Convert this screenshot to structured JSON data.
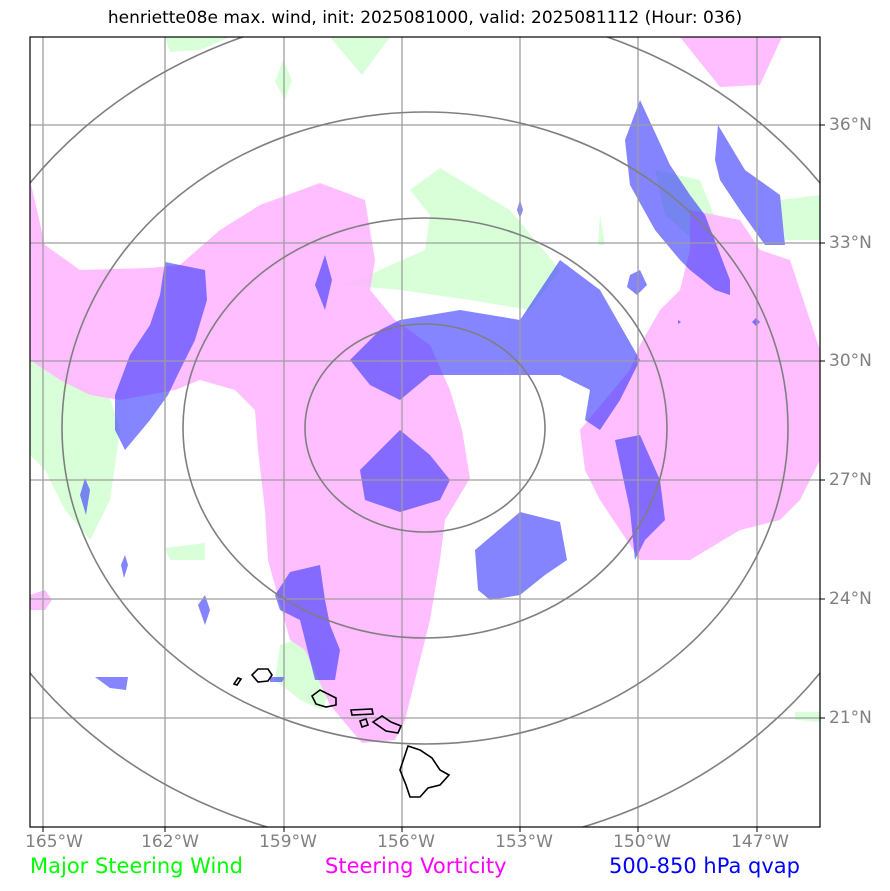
{
  "title": "henriette08e max. wind, init: 2025081000, valid: 2025081112 (Hour: 036)",
  "colors": {
    "wind": "#00ff00",
    "vorticity": "#ff00ff",
    "qvap": "#0000ff",
    "wind_fill": "#ccffcc",
    "vorticity_fill": "#ffb3ff",
    "qvap_fill": "#3333ff",
    "grid": "#9e9e9e",
    "rings": "#7f7f7f",
    "axis_labels": "#808080"
  },
  "axes": {
    "lon_labels": [
      "165°W",
      "162°W",
      "159°W",
      "156°W",
      "153°W",
      "150°W",
      "147°W"
    ],
    "lat_labels": [
      "36°N",
      "33°N",
      "30°N",
      "27°N",
      "24°N",
      "21°N"
    ]
  },
  "legend": {
    "wind": "Major Steering Wind",
    "vorticity": "Steering Vorticity",
    "qvap": "500-850 hPa qvap"
  },
  "features": {
    "range_rings": 4,
    "coastlines": "Hawaiian Islands"
  }
}
